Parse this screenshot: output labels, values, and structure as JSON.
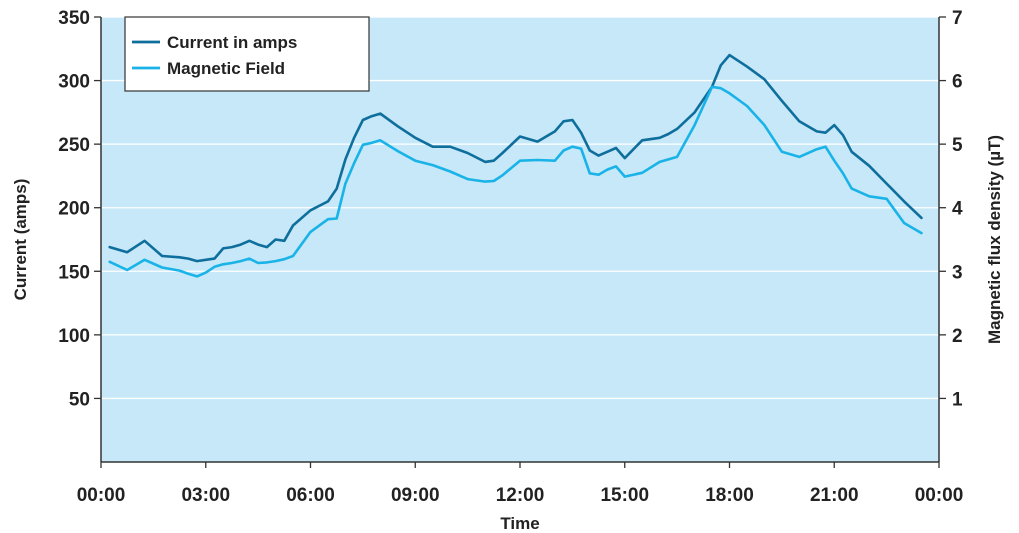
{
  "colors": {
    "plot_bg": "#c6e8f8",
    "grid": "#ffffff",
    "axis": "#333333",
    "current": "#0e6e9c",
    "magnetic": "#1ab3e8"
  },
  "chart_data": {
    "type": "line",
    "xlabel": "Time",
    "ylabel_left": "Current (amps)",
    "ylabel_right": "Magnetic flux density (µT)",
    "x_ticks": [
      "00:00",
      "03:00",
      "06:00",
      "09:00",
      "12:00",
      "15:00",
      "18:00",
      "21:00",
      "00:00"
    ],
    "xlim_hours": [
      0,
      24
    ],
    "ylim_left": [
      0,
      350
    ],
    "ylim_right": [
      0,
      7
    ],
    "y_ticks_left": [
      50,
      100,
      150,
      200,
      250,
      300,
      350
    ],
    "y_ticks_right": [
      1,
      2,
      3,
      4,
      5,
      6,
      7
    ],
    "grid": true,
    "legend_position": "top-left",
    "series": [
      {
        "name": "Current in amps",
        "axis": "left",
        "x_hours": [
          0.25,
          0.75,
          1.25,
          1.75,
          2.25,
          2.5,
          2.75,
          3.0,
          3.25,
          3.5,
          3.75,
          4.0,
          4.25,
          4.5,
          4.75,
          5.0,
          5.25,
          5.5,
          6.0,
          6.5,
          6.75,
          7.0,
          7.25,
          7.5,
          7.75,
          8.0,
          8.5,
          9.0,
          9.5,
          10.0,
          10.5,
          11.0,
          11.25,
          11.5,
          12.0,
          12.5,
          13.0,
          13.25,
          13.5,
          13.75,
          14.0,
          14.25,
          14.5,
          14.75,
          15.0,
          15.5,
          16.0,
          16.25,
          16.5,
          17.0,
          17.5,
          17.75,
          18.0,
          18.5,
          19.0,
          19.5,
          20.0,
          20.5,
          20.75,
          21.0,
          21.25,
          21.5,
          22.0,
          22.5,
          23.0,
          23.5
        ],
        "values": [
          169,
          165,
          174,
          162,
          161,
          160,
          158,
          159,
          160,
          168,
          169,
          171,
          174,
          171,
          169,
          175,
          174,
          186,
          198,
          205,
          215,
          238,
          255,
          269,
          272,
          274,
          264,
          255,
          248,
          248,
          243,
          236,
          237,
          243,
          256,
          252,
          260,
          268,
          269,
          259,
          245,
          241,
          244,
          247,
          239,
          253,
          255,
          258,
          262,
          275,
          295,
          312,
          320,
          311,
          301,
          284,
          268,
          260,
          259,
          265,
          257,
          244,
          233,
          219,
          205,
          192
        ]
      },
      {
        "name": "Magnetic Field",
        "axis": "right",
        "x_hours": [
          0.25,
          0.75,
          1.25,
          1.75,
          2.25,
          2.5,
          2.75,
          3.0,
          3.25,
          3.5,
          3.75,
          4.0,
          4.25,
          4.5,
          4.75,
          5.0,
          5.25,
          5.5,
          6.0,
          6.5,
          6.75,
          7.0,
          7.25,
          7.5,
          7.75,
          8.0,
          8.5,
          9.0,
          9.5,
          10.0,
          10.5,
          11.0,
          11.25,
          11.5,
          12.0,
          12.5,
          13.0,
          13.25,
          13.5,
          13.75,
          14.0,
          14.25,
          14.5,
          14.75,
          15.0,
          15.5,
          16.0,
          16.25,
          16.5,
          17.0,
          17.5,
          17.75,
          18.0,
          18.5,
          19.0,
          19.5,
          20.0,
          20.5,
          20.75,
          21.0,
          21.25,
          21.5,
          22.0,
          22.5,
          23.0,
          23.5
        ],
        "values": [
          3.15,
          3.02,
          3.18,
          3.06,
          3.01,
          2.96,
          2.92,
          2.98,
          3.07,
          3.11,
          3.13,
          3.16,
          3.2,
          3.13,
          3.14,
          3.16,
          3.19,
          3.24,
          3.62,
          3.82,
          3.83,
          4.38,
          4.7,
          4.99,
          5.02,
          5.06,
          4.89,
          4.74,
          4.67,
          4.57,
          4.45,
          4.41,
          4.42,
          4.51,
          4.74,
          4.75,
          4.74,
          4.9,
          4.96,
          4.93,
          4.54,
          4.52,
          4.6,
          4.65,
          4.49,
          4.55,
          4.72,
          4.76,
          4.8,
          5.3,
          5.9,
          5.88,
          5.8,
          5.6,
          5.3,
          4.88,
          4.8,
          4.92,
          4.96,
          4.74,
          4.54,
          4.3,
          4.18,
          4.14,
          3.76,
          3.6
        ]
      }
    ]
  }
}
